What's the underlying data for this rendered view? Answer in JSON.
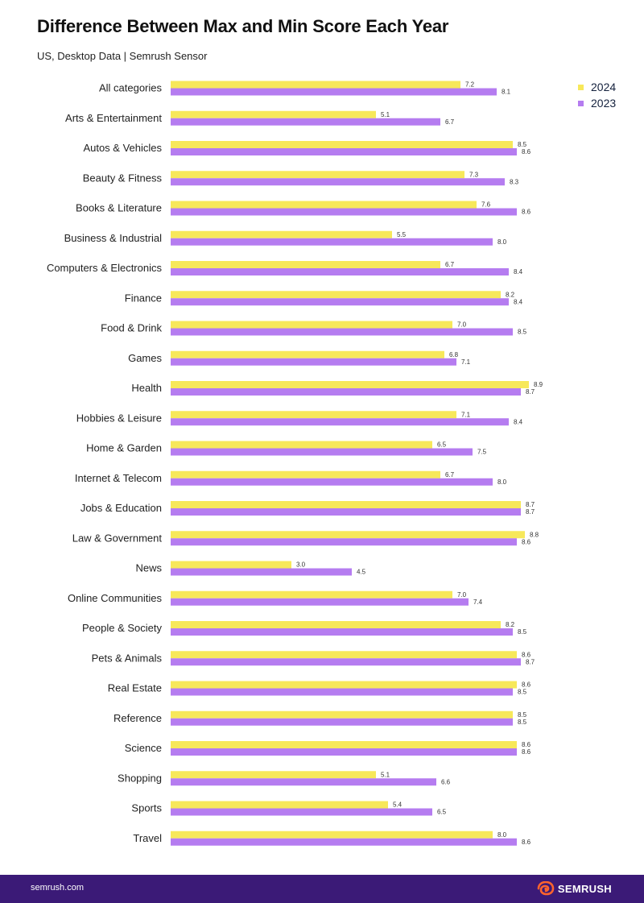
{
  "header": {
    "title": "Difference Between Max and Min Score Each Year",
    "subtitle": "US, Desktop Data | Semrush Sensor"
  },
  "footer": {
    "url": "semrush.com",
    "brand": "SEMRUSH",
    "brand_icon": "semrush-fire-icon",
    "background_color": "#3b1a77",
    "accent_color": "#ff642d"
  },
  "chart_data": {
    "type": "bar",
    "orientation": "horizontal",
    "title": "Difference Between Max and Min Score Each Year",
    "subtitle": "US, Desktop Data | Semrush Sensor",
    "legend_position": "top-right",
    "grid": false,
    "xlim": [
      0,
      10
    ],
    "categories": [
      "All categories",
      "Arts & Entertainment",
      "Autos & Vehicles",
      "Beauty & Fitness",
      "Books & Literature",
      "Business & Industrial",
      "Computers & Electronics",
      "Finance",
      "Food & Drink",
      "Games",
      "Health",
      "Hobbies & Leisure",
      "Home & Garden",
      "Internet & Telecom",
      "Jobs & Education",
      "Law & Government",
      "News",
      "Online Communities",
      "People & Society",
      "Pets & Animals",
      "Real Estate",
      "Reference",
      "Science",
      "Shopping",
      "Sports",
      "Travel"
    ],
    "series": [
      {
        "name": "2024",
        "color": "#f7e85a",
        "values": [
          7.2,
          5.1,
          8.5,
          7.3,
          7.6,
          5.5,
          6.7,
          8.2,
          7.0,
          6.8,
          8.9,
          7.1,
          6.5,
          6.7,
          8.7,
          8.8,
          3.0,
          7.0,
          8.2,
          8.6,
          8.6,
          8.5,
          8.6,
          5.1,
          5.4,
          8.0
        ]
      },
      {
        "name": "2023",
        "color": "#b57cf0",
        "values": [
          8.1,
          6.7,
          8.6,
          8.3,
          8.6,
          8.0,
          8.4,
          8.4,
          8.5,
          7.1,
          8.7,
          8.4,
          7.5,
          8.0,
          8.7,
          8.6,
          4.5,
          7.4,
          8.5,
          8.7,
          8.5,
          8.5,
          8.6,
          6.6,
          6.5,
          8.6
        ]
      }
    ]
  }
}
